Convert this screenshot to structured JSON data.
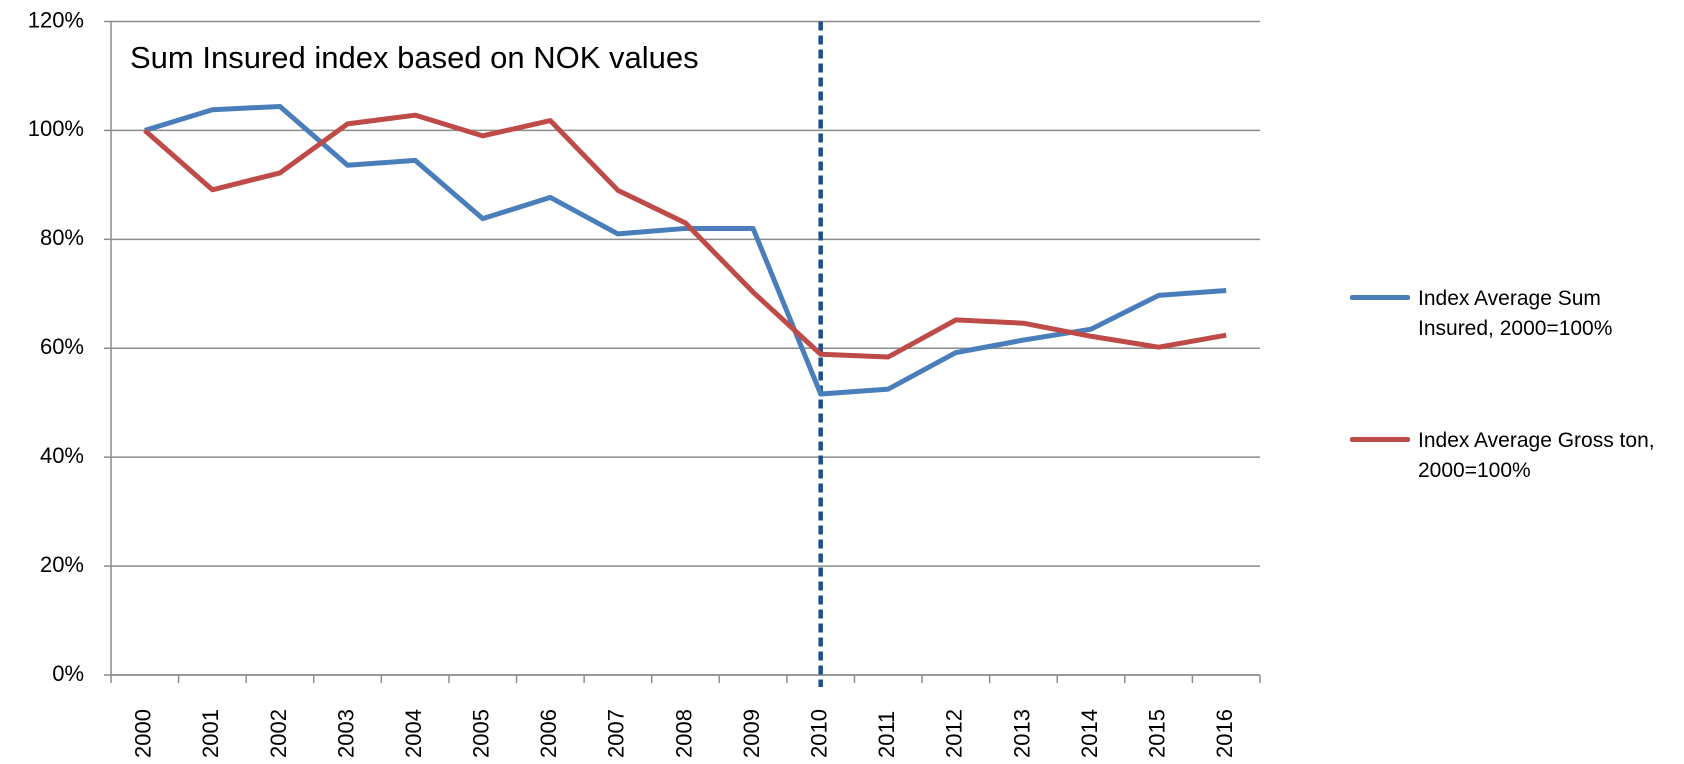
{
  "chart_data": {
    "type": "line",
    "title": "Sum Insured index based on NOK values",
    "categories": [
      "2000",
      "2001",
      "2002",
      "2003",
      "2004",
      "2005",
      "2006",
      "2007",
      "2008",
      "2009",
      "2010",
      "2011",
      "2012",
      "2013",
      "2014",
      "2015",
      "2016"
    ],
    "series": [
      {
        "name": "Index Average Sum Insured, 2000=100%",
        "color": "#4a7ebb",
        "values": [
          100,
          103.8,
          104.4,
          93.6,
          94.5,
          83.8,
          87.7,
          81,
          82,
          82,
          51.6,
          52.5,
          59.2,
          61.5,
          63.5,
          69.7,
          70.6
        ]
      },
      {
        "name": "Index Average Gross ton, 2000=100%",
        "color": "#be4b48",
        "values": [
          100,
          89.1,
          92.2,
          101.2,
          102.8,
          99,
          101.8,
          89,
          83,
          70.3,
          58.9,
          58.4,
          65.2,
          64.6,
          62.2,
          60.2,
          62.4
        ]
      }
    ],
    "ylim": [
      0,
      120
    ],
    "yticks": [
      {
        "value": 0,
        "label": "0%"
      },
      {
        "value": 20,
        "label": "20%"
      },
      {
        "value": 40,
        "label": "40%"
      },
      {
        "value": 60,
        "label": "60%"
      },
      {
        "value": 80,
        "label": "80%"
      },
      {
        "value": 100,
        "label": "100%"
      },
      {
        "value": 120,
        "label": "120%"
      }
    ],
    "grid": true,
    "legend": "right",
    "reference_line": {
      "category": "2010",
      "color": "#1f4e8c",
      "style": "dashed"
    }
  }
}
